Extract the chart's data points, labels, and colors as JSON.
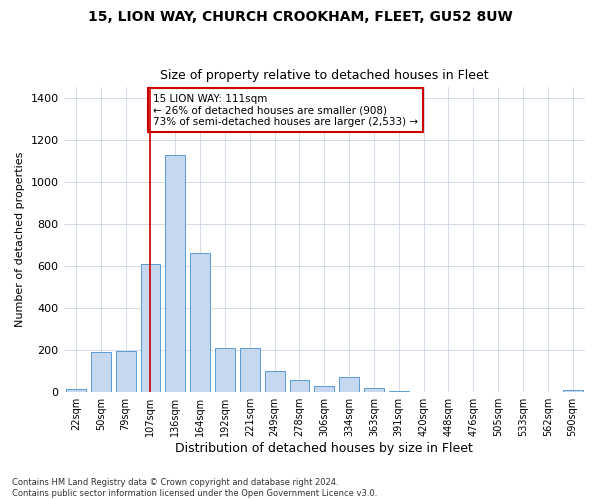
{
  "title1": "15, LION WAY, CHURCH CROOKHAM, FLEET, GU52 8UW",
  "title2": "Size of property relative to detached houses in Fleet",
  "xlabel": "Distribution of detached houses by size in Fleet",
  "ylabel": "Number of detached properties",
  "bin_labels": [
    "22sqm",
    "50sqm",
    "79sqm",
    "107sqm",
    "136sqm",
    "164sqm",
    "192sqm",
    "221sqm",
    "249sqm",
    "278sqm",
    "306sqm",
    "334sqm",
    "363sqm",
    "391sqm",
    "420sqm",
    "448sqm",
    "476sqm",
    "505sqm",
    "533sqm",
    "562sqm",
    "590sqm"
  ],
  "bar_values": [
    15,
    190,
    195,
    610,
    1130,
    660,
    210,
    210,
    100,
    60,
    30,
    70,
    20,
    5,
    3,
    0,
    0,
    0,
    0,
    0,
    10
  ],
  "bar_color": "#c5d8f0",
  "bar_edge_color": "#5b9bd5",
  "annotation_text": "15 LION WAY: 111sqm\n← 26% of detached houses are smaller (908)\n73% of semi-detached houses are larger (2,533) →",
  "annotation_box_color": "#ffffff",
  "annotation_edge_color": "#cc0000",
  "property_line_color": "#cc0000",
  "ylim": [
    0,
    1450
  ],
  "yticks": [
    0,
    200,
    400,
    600,
    800,
    1000,
    1200,
    1400
  ],
  "footnote1": "Contains HM Land Registry data © Crown copyright and database right 2024.",
  "footnote2": "Contains public sector information licensed under the Open Government Licence v3.0.",
  "background_color": "#ffffff",
  "grid_color": "#cdd6e8"
}
